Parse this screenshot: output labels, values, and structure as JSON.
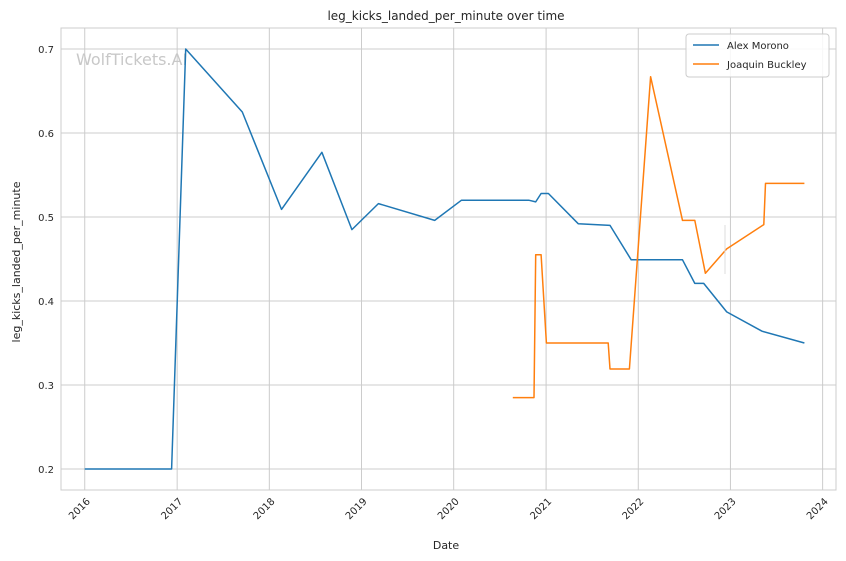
{
  "chart_data": {
    "type": "line",
    "title": "leg_kicks_landed_per_minute over time",
    "xlabel": "Date",
    "ylabel": "leg_kicks_landed_per_minute",
    "watermark": "WolfTickets.AI",
    "x_ticks": [
      "2016",
      "2017",
      "2018",
      "2019",
      "2020",
      "2021",
      "2022",
      "2023",
      "2024"
    ],
    "y_ticks": [
      "0.2",
      "0.3",
      "0.4",
      "0.5",
      "0.6",
      "0.7"
    ],
    "xlim": [
      "2015-09-29",
      "2024-02-23"
    ],
    "ylim": [
      0.175,
      0.725
    ],
    "grid": true,
    "legend_position": "top-right",
    "series": [
      {
        "name": "Alex Morono",
        "color": "#1f77b4",
        "points": [
          [
            "2016-01-01",
            0.2
          ],
          [
            "2016-12-10",
            0.2
          ],
          [
            "2017-02-04",
            0.7
          ],
          [
            "2017-09-16",
            0.625
          ],
          [
            "2018-02-18",
            0.509
          ],
          [
            "2018-07-28",
            0.577
          ],
          [
            "2018-11-24",
            0.485
          ],
          [
            "2019-03-09",
            0.516
          ],
          [
            "2019-10-18",
            0.496
          ],
          [
            "2020-02-01",
            0.52
          ],
          [
            "2020-10-24",
            0.52
          ],
          [
            "2020-11-21",
            0.518
          ],
          [
            "2020-12-12",
            0.528
          ],
          [
            "2021-01-10",
            0.528
          ],
          [
            "2021-05-08",
            0.492
          ],
          [
            "2021-09-11",
            0.49
          ],
          [
            "2021-12-04",
            0.449
          ],
          [
            "2022-06-25",
            0.449
          ],
          [
            "2022-08-13",
            0.421
          ],
          [
            "2022-09-17",
            0.421
          ],
          [
            "2022-12-17",
            0.387
          ],
          [
            "2023-05-06",
            0.364
          ],
          [
            "2023-10-21",
            0.35
          ]
        ]
      },
      {
        "name": "Joaquin Buckley",
        "color": "#ff7f0e",
        "points": [
          [
            "2020-08-22",
            0.285
          ],
          [
            "2020-11-14",
            0.285
          ],
          [
            "2020-11-21",
            0.455
          ],
          [
            "2020-12-12",
            0.455
          ],
          [
            "2021-01-02",
            0.35
          ],
          [
            "2021-09-04",
            0.35
          ],
          [
            "2021-09-11",
            0.319
          ],
          [
            "2021-11-27",
            0.319
          ],
          [
            "2022-02-19",
            0.667
          ],
          [
            "2022-06-25",
            0.496
          ],
          [
            "2022-08-13",
            0.496
          ],
          [
            "2022-09-24",
            0.433
          ],
          [
            "2022-12-17",
            0.462
          ],
          [
            "2023-05-13",
            0.491
          ],
          [
            "2023-05-20",
            0.54
          ],
          [
            "2023-10-21",
            0.54
          ]
        ]
      }
    ]
  }
}
